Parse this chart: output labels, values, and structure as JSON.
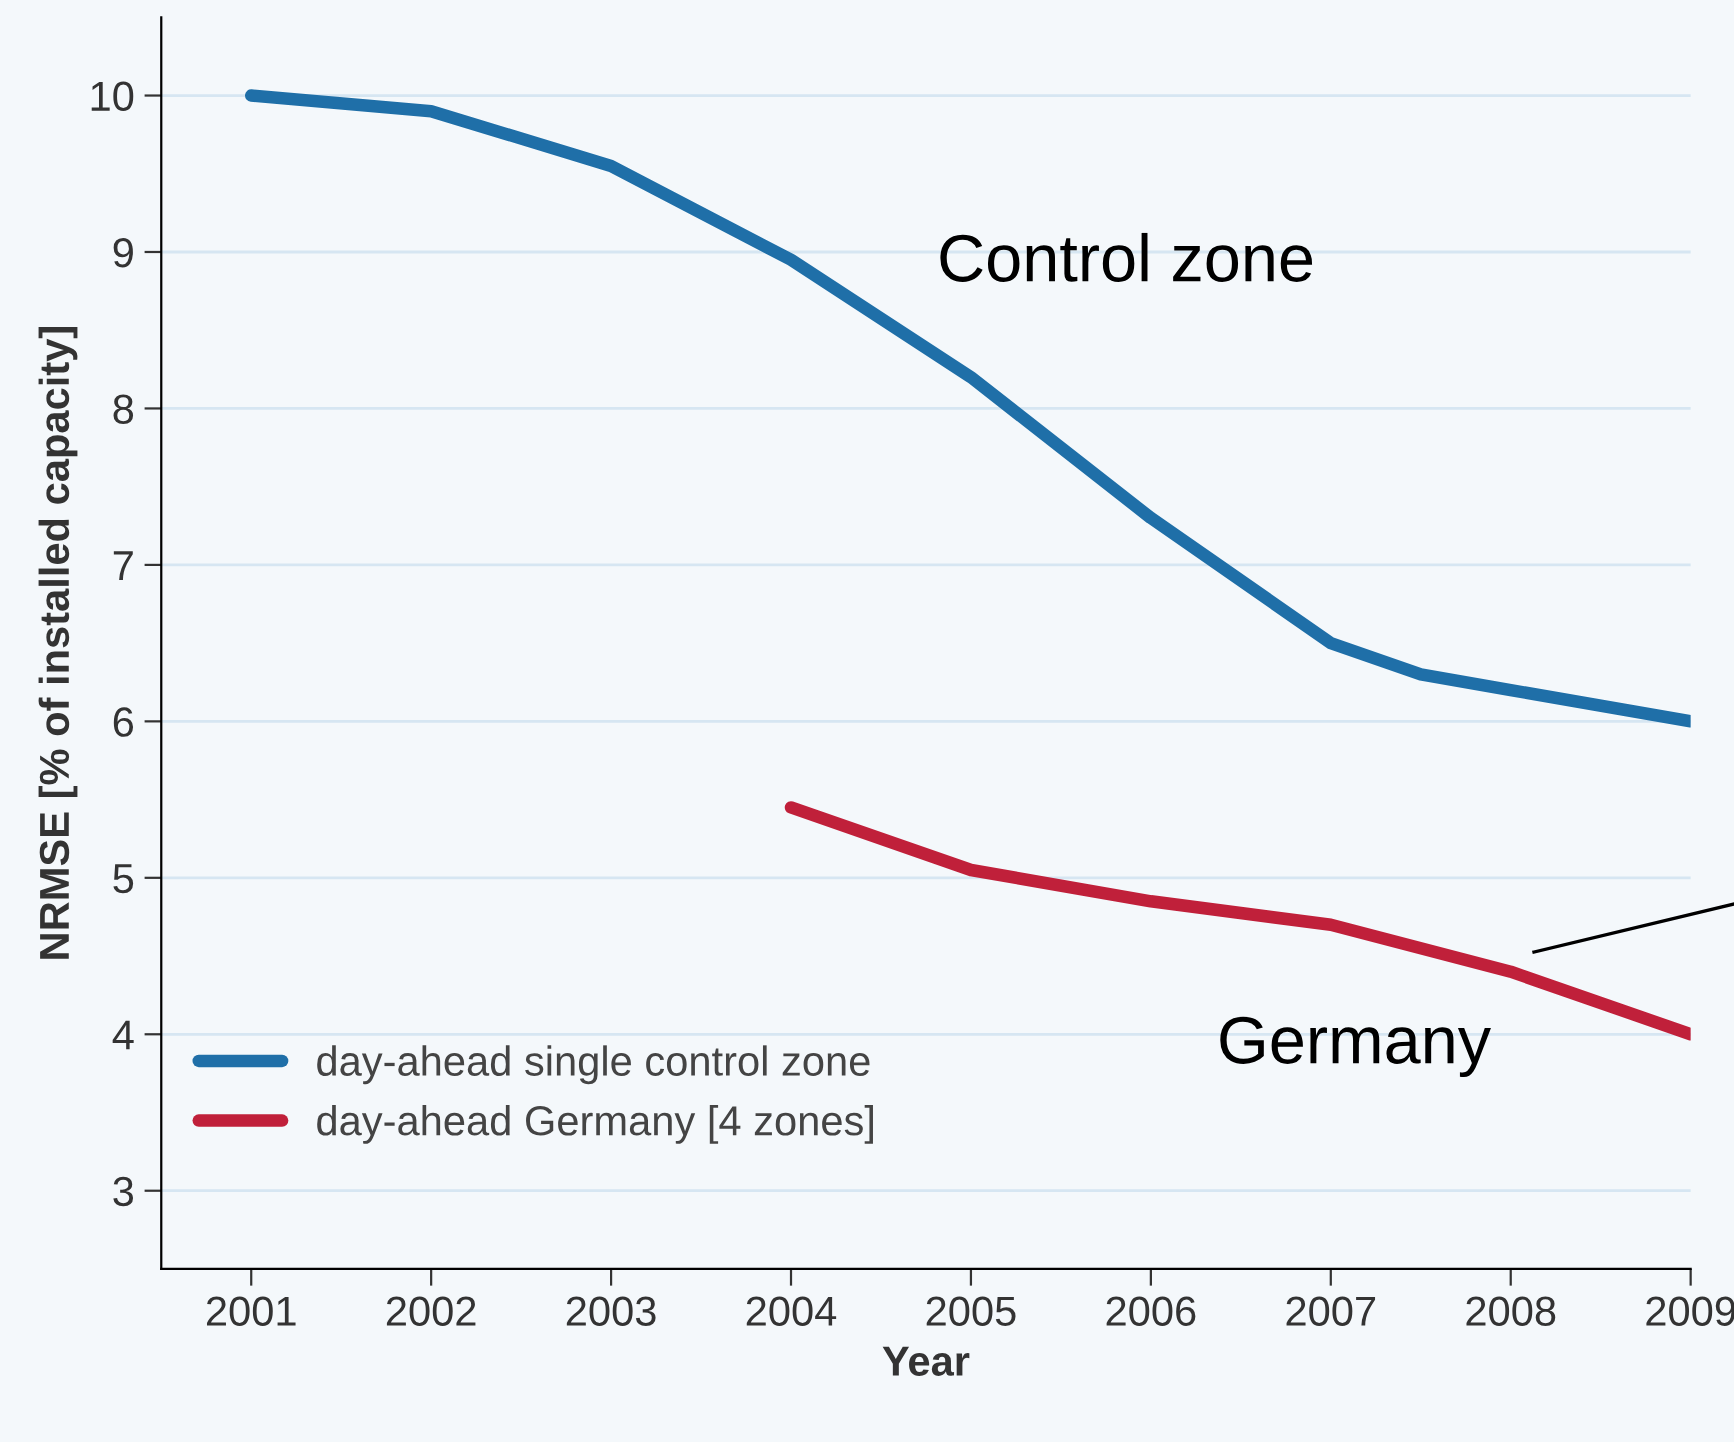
{
  "chart_data": {
    "type": "line",
    "xlabel": "Year",
    "ylabel": "NRMSE [% of installed capacity]",
    "xlim": [
      2000.5,
      2009
    ],
    "xticks": [
      2001,
      2002,
      2003,
      2004,
      2005,
      2006,
      2007,
      2008,
      2009
    ],
    "ylim": [
      2.5,
      10.5
    ],
    "yticks": [
      3,
      4,
      5,
      6,
      7,
      8,
      9,
      10
    ],
    "grid": "y",
    "legend": "bottom left",
    "marker": "none",
    "line_style": "solid",
    "series": [
      {
        "name": "day-ahead single control zone",
        "color": "#1f6fa8",
        "x": [
          2001,
          2002,
          2003,
          2004,
          2005,
          2006,
          2007,
          2007.5,
          2008,
          2009
        ],
        "values": [
          10.0,
          9.9,
          9.55,
          8.95,
          8.2,
          7.3,
          6.5,
          6.3,
          6.2,
          6.0
        ]
      },
      {
        "name": "day-ahead Germany [4 zones]",
        "color": "#c0203a",
        "x": [
          2004,
          2005,
          2006,
          2007,
          2008,
          2009
        ],
        "values": [
          5.45,
          5.05,
          4.85,
          4.7,
          4.4,
          4.0
        ]
      }
    ],
    "annotations": [
      "Control zone",
      "Germany"
    ]
  }
}
